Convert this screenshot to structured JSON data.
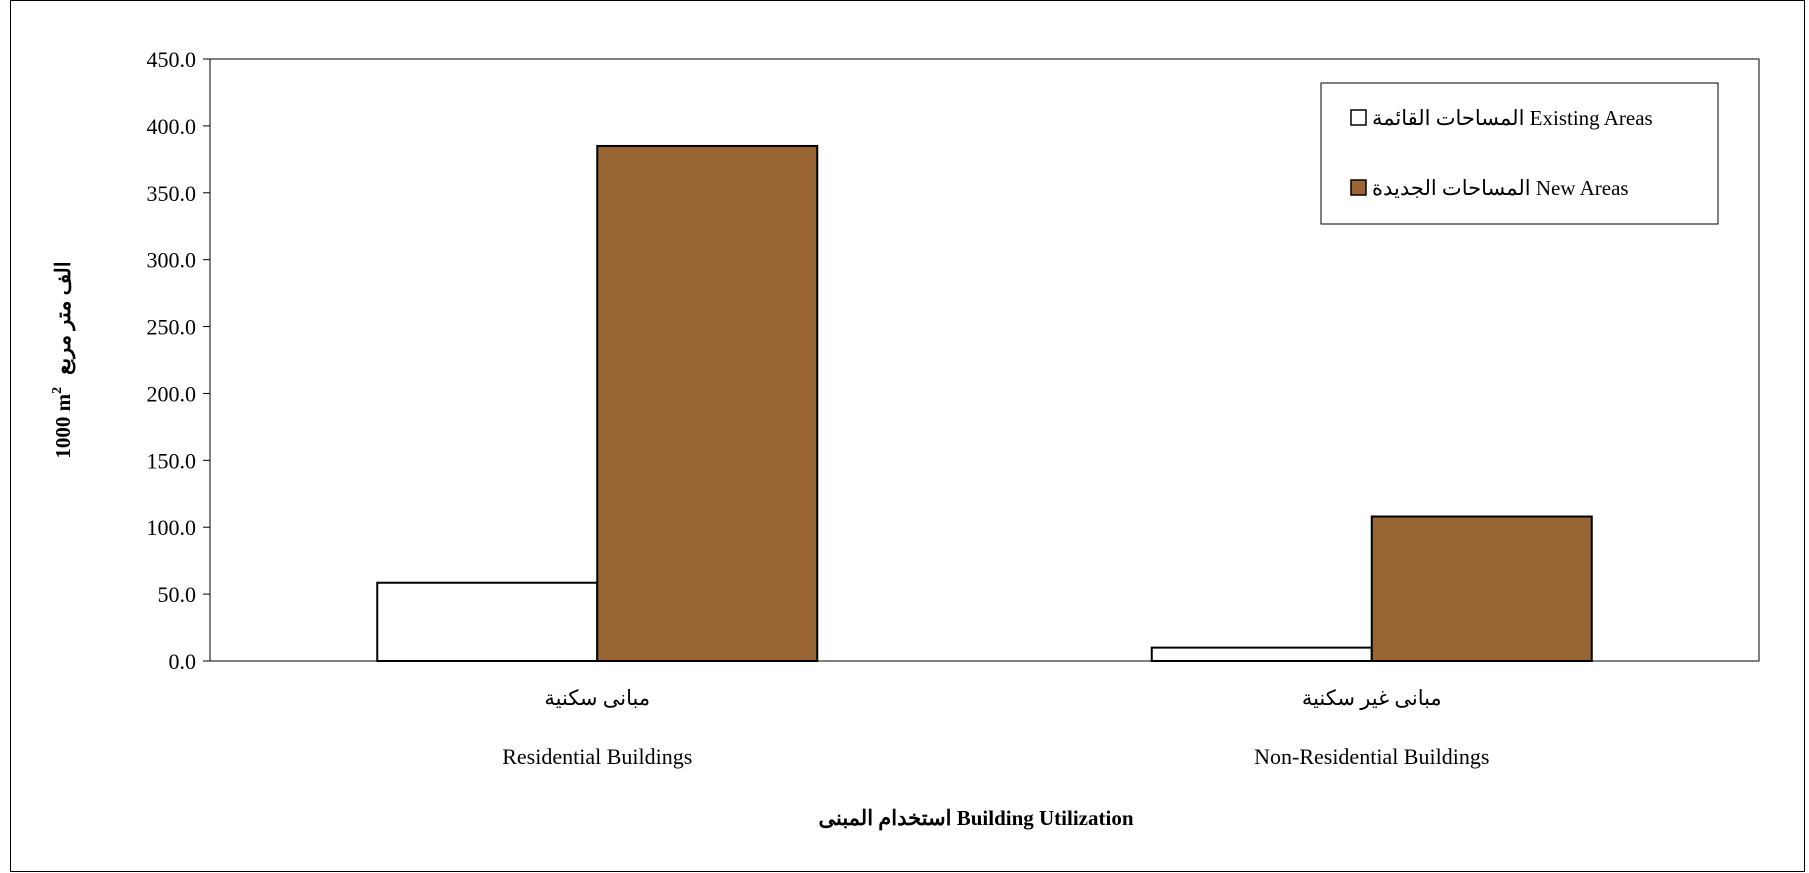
{
  "chart_data": {
    "type": "bar",
    "categories": [
      {
        "ar": "مبانى سكنية",
        "en": "Residential Buildings"
      },
      {
        "ar": "مبانى غير سكنية",
        "en": "Non-Residential Buildings"
      }
    ],
    "series": [
      {
        "name": "المساحات  القائمة Existing Areas",
        "values": [
          58.5,
          10.0
        ],
        "color": "#FFFFFF"
      },
      {
        "name": "المساحات  الجديدة New Areas",
        "values": [
          385.0,
          108.0
        ],
        "color": "#996633"
      }
    ],
    "xlabel": "استخدام المبنى Building Utilization",
    "ylabel": {
      "en": "1000 m",
      "sup": "2",
      "ar": "الف متر مربع"
    },
    "ylim": [
      0,
      450
    ],
    "yticks": [
      "0.0",
      "50.0",
      "100.0",
      "150.0",
      "200.0",
      "250.0",
      "300.0",
      "350.0",
      "400.0",
      "450.0"
    ],
    "grid": false,
    "legend_position": "top-right"
  }
}
